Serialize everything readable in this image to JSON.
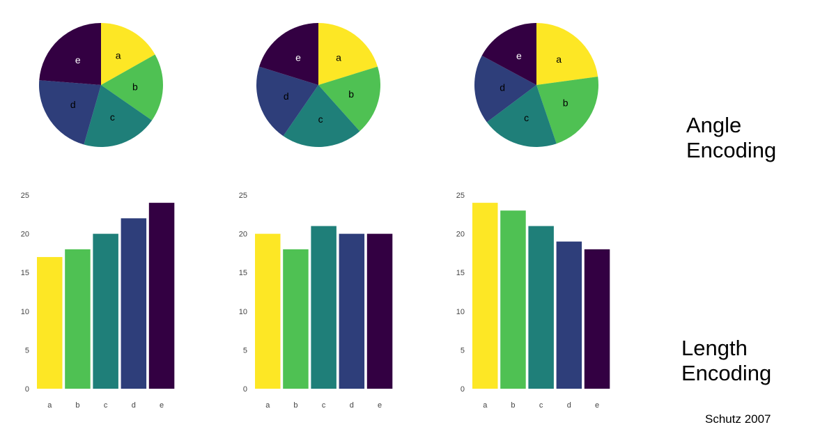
{
  "colors": {
    "a": "#fde725",
    "b": "#4fc153",
    "c": "#1f7f79",
    "d": "#2e3e7a",
    "e": "#330042"
  },
  "labels": {
    "angle_line1": "Angle",
    "angle_line2": "Encoding",
    "length_line1": "Length",
    "length_line2": "Encoding",
    "credit": "Schutz  2007"
  },
  "chart_data": [
    {
      "type": "pie",
      "categories": [
        "a",
        "b",
        "c",
        "d",
        "e"
      ],
      "values": [
        17,
        18,
        20,
        22,
        24
      ]
    },
    {
      "type": "pie",
      "categories": [
        "a",
        "b",
        "c",
        "d",
        "e"
      ],
      "values": [
        20,
        18,
        21,
        20,
        20
      ]
    },
    {
      "type": "pie",
      "categories": [
        "a",
        "b",
        "c",
        "d",
        "e"
      ],
      "values": [
        24,
        23,
        21,
        19,
        18
      ]
    },
    {
      "type": "bar",
      "categories": [
        "a",
        "b",
        "c",
        "d",
        "e"
      ],
      "values": [
        17,
        18,
        20,
        22,
        24
      ],
      "ylim": [
        0,
        25
      ],
      "yticks": [
        0,
        5,
        10,
        15,
        20,
        25
      ]
    },
    {
      "type": "bar",
      "categories": [
        "a",
        "b",
        "c",
        "d",
        "e"
      ],
      "values": [
        20,
        18,
        21,
        20,
        20
      ],
      "ylim": [
        0,
        25
      ],
      "yticks": [
        0,
        5,
        10,
        15,
        20,
        25
      ]
    },
    {
      "type": "bar",
      "categories": [
        "a",
        "b",
        "c",
        "d",
        "e"
      ],
      "values": [
        24,
        23,
        21,
        19,
        18
      ],
      "ylim": [
        0,
        25
      ],
      "yticks": [
        0,
        5,
        10,
        15,
        20,
        25
      ]
    }
  ]
}
